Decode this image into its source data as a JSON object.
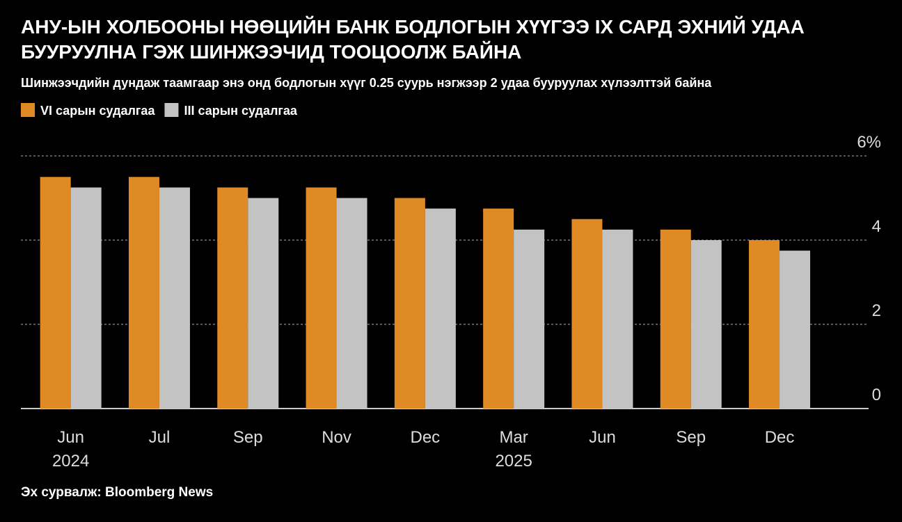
{
  "chart_data": {
    "type": "bar",
    "title": "АНУ-ЫН ХОЛБООНЫ НӨӨЦИЙН БАНК БОДЛОГЫН ХҮҮГЭЭ IX САРД ЭХНИЙ УДАА БУУРУУЛНА ГЭЖ ШИНЖЭЭЧИД ТООЦООЛЖ БАЙНА",
    "subtitle": "Шинжээчдийн дундаж таамгаар энэ онд бодлогын хүүг 0.25 суурь нэгжээр 2 удаа бууруулах хүлээлттэй байна",
    "source": "Эх сурвалж: Bloomberg News",
    "categories": [
      "Jun",
      "Jul",
      "Sep",
      "Nov",
      "Dec",
      "Mar",
      "Jun",
      "Sep",
      "Dec"
    ],
    "category_years": [
      "2024",
      null,
      null,
      null,
      null,
      "2025",
      null,
      null,
      null
    ],
    "series": [
      {
        "name": "VI сарын судалгаа",
        "color": "#e08a25",
        "values": [
          5.5,
          5.5,
          5.25,
          5.25,
          5.0,
          4.75,
          4.5,
          4.25,
          4.0
        ]
      },
      {
        "name": "III сарын судалгаа",
        "color": "#c3c3c3",
        "values": [
          5.25,
          5.25,
          5.0,
          5.0,
          4.75,
          4.25,
          4.25,
          4.0,
          3.75
        ]
      }
    ],
    "ylim": [
      0,
      6
    ],
    "yticks": [
      0,
      2,
      4,
      {
        "value": 6,
        "label": "6%"
      }
    ],
    "grid": true
  }
}
